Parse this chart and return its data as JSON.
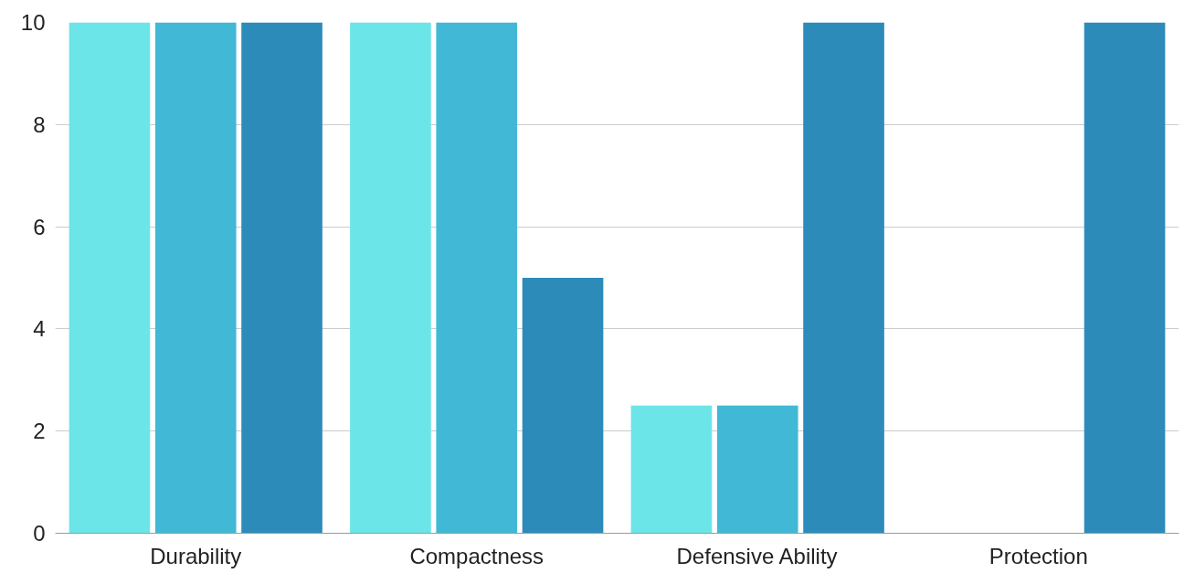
{
  "chart_data": {
    "type": "bar",
    "categories": [
      "Durability",
      "Compactness",
      "Defensive Ability",
      "Protection"
    ],
    "series": [
      {
        "color": "#6ce5e8",
        "values": [
          10,
          10,
          2.5,
          0
        ]
      },
      {
        "color": "#41b8d5",
        "values": [
          10,
          10,
          2.5,
          0
        ]
      },
      {
        "color": "#2d8bba",
        "values": [
          10,
          5,
          10,
          10
        ]
      }
    ],
    "ylim": [
      0,
      10
    ],
    "yticks": [
      0,
      2,
      4,
      6,
      8,
      10
    ],
    "grid": "y"
  }
}
